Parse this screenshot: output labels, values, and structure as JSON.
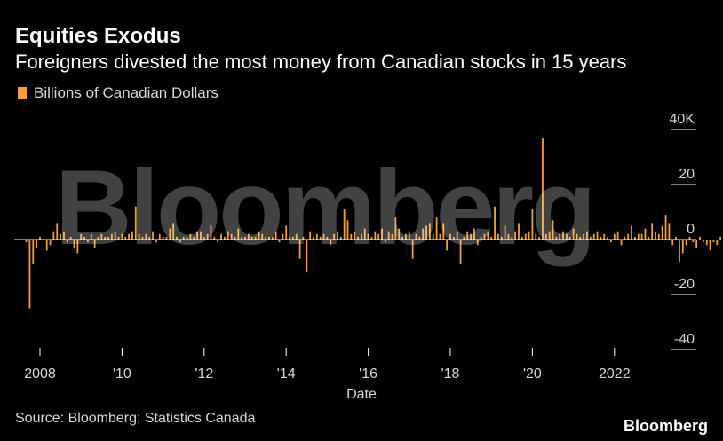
{
  "header": {
    "title": "Equities Exodus",
    "subtitle": "Foreigners divested the most money from Canadian stocks in 15 years"
  },
  "legend": {
    "label": "Billions of Canadian Dollars",
    "color": "#f2a03d"
  },
  "footer": {
    "source": "Source: Bloomberg; Statistics Canada",
    "brand": "Bloomberg"
  },
  "watermark": "Bloomberg",
  "chart_data": {
    "type": "bar",
    "xlabel": "Date",
    "ylabel": "",
    "ylim": [
      -40,
      40
    ],
    "y_ticks": [
      {
        "value": 40,
        "label": "40K"
      },
      {
        "value": 20,
        "label": "20"
      },
      {
        "value": 0,
        "label": "0"
      },
      {
        "value": -20,
        "label": "-20"
      },
      {
        "value": -40,
        "label": "-40"
      }
    ],
    "x_ticks": [
      {
        "year": 2008,
        "label": "2008"
      },
      {
        "year": 2010,
        "label": "'10"
      },
      {
        "year": 2012,
        "label": "'12"
      },
      {
        "year": 2014,
        "label": "'14"
      },
      {
        "year": 2016,
        "label": "'16"
      },
      {
        "year": 2018,
        "label": "'18"
      },
      {
        "year": 2020,
        "label": "'20"
      },
      {
        "year": 2022,
        "label": "2022"
      }
    ],
    "x_start": "2007-09",
    "grid": false,
    "legend_position": "top-left",
    "bar_color": "#f2a03d",
    "values": [
      -1,
      -25,
      -9,
      -3,
      1,
      0,
      -4,
      -2,
      3,
      6,
      2,
      3,
      -1,
      1,
      -3,
      -5,
      2,
      1,
      -1,
      2,
      -3,
      1,
      2,
      1,
      1,
      2,
      3,
      1,
      2,
      1,
      2,
      3,
      12,
      2,
      1,
      2,
      1,
      3,
      -1,
      2,
      1,
      1,
      4,
      6,
      1,
      -1,
      1,
      1,
      2,
      1,
      3,
      3,
      1,
      2,
      5,
      1,
      -1,
      2,
      1,
      3,
      2,
      1,
      4,
      1,
      1,
      2,
      1,
      1,
      3,
      2,
      1,
      1,
      1,
      3,
      -1,
      2,
      5,
      1,
      1,
      2,
      -7,
      1,
      -12,
      3,
      1,
      2,
      1,
      2,
      1,
      -2,
      2,
      3,
      1,
      11,
      7,
      2,
      3,
      1,
      2,
      4,
      2,
      1,
      3,
      2,
      4,
      -1,
      3,
      2,
      8,
      4,
      1,
      2,
      3,
      -7,
      2,
      1,
      4,
      5,
      6,
      2,
      8,
      2,
      6,
      -4,
      2,
      1,
      3,
      -9,
      1,
      3,
      2,
      4,
      -2,
      1,
      2,
      3,
      1,
      12,
      2,
      1,
      5,
      2,
      1,
      3,
      6,
      1,
      2,
      3,
      11,
      2,
      1,
      37,
      2,
      3,
      7,
      1,
      2,
      3,
      2,
      1,
      4,
      2,
      1,
      2,
      3,
      1,
      2,
      3,
      1,
      2,
      1,
      -1,
      2,
      3,
      -2,
      1,
      2,
      5,
      1,
      2,
      2,
      4,
      1,
      6,
      3,
      2,
      5,
      9,
      6,
      -2,
      1,
      -8,
      -5,
      -2,
      1,
      -1,
      -3,
      1,
      -1,
      -2,
      -4,
      -1,
      -2,
      1,
      -6,
      -3,
      -7,
      -4,
      -9,
      -2,
      -3,
      1,
      -6,
      2,
      4,
      6,
      -2,
      1,
      3,
      7,
      5,
      9,
      10,
      11,
      4,
      2,
      1,
      -3,
      1,
      2,
      -1,
      2,
      3,
      1,
      -1,
      16,
      2,
      1,
      -3,
      13,
      -1,
      1,
      -5,
      -14
    ]
  }
}
